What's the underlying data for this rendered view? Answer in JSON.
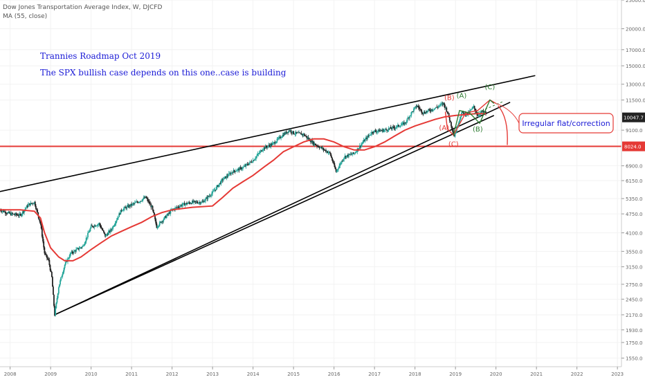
{
  "header": {
    "title": "Dow Jones Transportation Average Index, W, DJCFD",
    "ma": "MA (55, close)"
  },
  "notes": {
    "title": "Trannies Roadmap Oct 2019",
    "subtitle": "The SPX bullish case depends on this one..case is building"
  },
  "annotation_box": {
    "text": "Irregular flat/correction"
  },
  "waves": {
    "red": [
      "(B)",
      "(A)",
      "(C)"
    ],
    "green": [
      "(A)",
      "(C)",
      "(B)"
    ]
  },
  "colors": {
    "candle_up": "#26a69a",
    "candle_down": "#222222",
    "ma": "#e53935",
    "trendline": "#000000",
    "level": "#e53935",
    "price_label_bg": "#222222",
    "level_label_bg": "#e53935",
    "wave_red": "#e53935",
    "wave_green": "#2e7d32",
    "note_text": "#1a1ad6"
  },
  "chart_data": {
    "type": "line",
    "scale": "log",
    "ylim": [
      1450,
      25000
    ],
    "xlim": [
      2007.75,
      2023.1
    ],
    "y_ticks": [
      "25000.0",
      "20000.0",
      "17000.0",
      "15000.0",
      "13000.0",
      "11500.0",
      "9100.0",
      "8024.0",
      "6900.0",
      "6150.0",
      "5350.0",
      "4750.0",
      "4100.0",
      "3550.0",
      "3150.0",
      "2750.0",
      "2450.0",
      "2170.0",
      "1930.0",
      "1750.0",
      "1550.0"
    ],
    "x_ticks": [
      "2008",
      "2009",
      "2010",
      "2011",
      "2012",
      "2013",
      "2014",
      "2015",
      "2016",
      "2017",
      "2018",
      "2019",
      "2020",
      "2021",
      "2022",
      "2023"
    ],
    "last_price": "10047.7",
    "horizontal_level": 8024.0,
    "price_series": {
      "name": "",
      "x": [
        2007.75,
        2008.0,
        2008.25,
        2008.45,
        2008.6,
        2008.75,
        2008.85,
        2008.95,
        2009.03,
        2009.1,
        2009.2,
        2009.35,
        2009.5,
        2009.65,
        2009.8,
        2010.0,
        2010.2,
        2010.35,
        2010.5,
        2010.75,
        2011.0,
        2011.2,
        2011.35,
        2011.5,
        2011.62,
        2011.75,
        2012.0,
        2012.25,
        2012.5,
        2012.75,
        2013.0,
        2013.25,
        2013.5,
        2013.75,
        2014.0,
        2014.25,
        2014.5,
        2014.75,
        2014.9,
        2015.0,
        2015.25,
        2015.5,
        2015.7,
        2015.9,
        2016.05,
        2016.25,
        2016.5,
        2016.75,
        2016.95,
        2017.25,
        2017.5,
        2017.75,
        2017.95,
        2018.05,
        2018.2,
        2018.5,
        2018.7,
        2018.8,
        2018.97,
        2019.15,
        2019.3,
        2019.45,
        2019.55,
        2019.65,
        2019.75
      ],
      "values": [
        4900,
        4750,
        4700,
        5100,
        5200,
        4400,
        3500,
        3300,
        2900,
        2170,
        2700,
        3200,
        3500,
        3600,
        3700,
        4300,
        4400,
        4000,
        4200,
        4900,
        5100,
        5250,
        5400,
        5000,
        4300,
        4500,
        4900,
        5100,
        5200,
        5200,
        5600,
        6200,
        6600,
        6800,
        7200,
        7900,
        8200,
        8800,
        9100,
        8900,
        8800,
        8200,
        7900,
        7600,
        6600,
        7400,
        7600,
        8400,
        9000,
        9100,
        9300,
        9600,
        10600,
        11000,
        10400,
        10800,
        11200,
        10500,
        8700,
        10400,
        10300,
        10900,
        10200,
        10500,
        10400
      ]
    },
    "ma_series": {
      "name": "MA (55, close)",
      "x": [
        2007.75,
        2008.25,
        2008.6,
        2008.75,
        2008.85,
        2009.0,
        2009.2,
        2009.35,
        2009.55,
        2009.75,
        2010.0,
        2010.25,
        2010.5,
        2010.75,
        2011.0,
        2011.25,
        2011.5,
        2011.75,
        2012.0,
        2012.5,
        2013.0,
        2013.25,
        2013.5,
        2013.75,
        2014.0,
        2014.25,
        2014.5,
        2014.75,
        2015.0,
        2015.25,
        2015.5,
        2015.75,
        2016.0,
        2016.25,
        2016.5,
        2016.75,
        2017.0,
        2017.25,
        2017.5,
        2017.75,
        2018.0,
        2018.5,
        2018.75,
        2019.0,
        2019.5,
        2019.75
      ],
      "values": [
        4900,
        4900,
        4850,
        4600,
        4100,
        3650,
        3400,
        3300,
        3300,
        3400,
        3600,
        3800,
        4000,
        4150,
        4300,
        4450,
        4650,
        4800,
        4900,
        5000,
        5050,
        5400,
        5800,
        6100,
        6400,
        6800,
        7200,
        7700,
        8000,
        8300,
        8500,
        8500,
        8300,
        8000,
        7800,
        7800,
        8000,
        8300,
        8700,
        9100,
        9400,
        9900,
        10100,
        10200,
        10350,
        10350
      ]
    },
    "trendlines": [
      {
        "x": [
          2007.75,
          2020.97
        ],
        "values": [
          5650,
          13900
        ]
      },
      {
        "x": [
          2009.1,
          2019.95
        ],
        "values": [
          2170,
          10200
        ]
      },
      {
        "x": [
          2009.1,
          2020.35
        ],
        "values": [
          2170,
          11300
        ]
      }
    ],
    "wave_path_red": {
      "x": [
        2018.75,
        2018.8,
        2018.95,
        2019.25,
        2019.55,
        2019.85,
        2020.0
      ],
      "values": [
        10500,
        9200,
        8750,
        10400,
        10600,
        11500,
        11200
      ]
    },
    "wave_path_green": {
      "x": [
        2018.95,
        2019.1,
        2019.35,
        2019.6,
        2019.85,
        2019.95
      ],
      "values": [
        8750,
        10600,
        10400,
        9600,
        11500,
        11200
      ]
    },
    "wave_label_points": [
      {
        "label": "(B)",
        "color": "red",
        "x": 2018.85,
        "y": 11500
      },
      {
        "label": "(A)",
        "color": "red",
        "x": 2018.72,
        "y": 9100
      },
      {
        "label": "(C)",
        "color": "red",
        "x": 2018.95,
        "y": 8024
      },
      {
        "label": "(A)",
        "color": "green",
        "x": 2019.15,
        "y": 11700
      },
      {
        "label": "(C)",
        "color": "green",
        "x": 2019.85,
        "y": 12500
      },
      {
        "label": "(B)",
        "color": "green",
        "x": 2019.55,
        "y": 9000
      }
    ]
  }
}
